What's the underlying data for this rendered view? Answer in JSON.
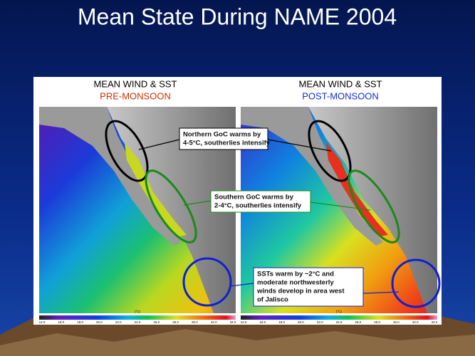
{
  "title": "Mean State During NAME 2004",
  "panels": [
    {
      "heading": "MEAN WIND & SST",
      "period": "PRE-MONSOON",
      "colorbar_unit": "(°C)",
      "colorbar_ticks": [
        "14.0",
        "16.0",
        "18.0",
        "20.0",
        "22.0",
        "24.0",
        "26.0",
        "28.0",
        "30.0",
        "32.0",
        "34.0"
      ]
    },
    {
      "heading": "MEAN WIND & SST",
      "period": "POST-MONSOON",
      "colorbar_unit": "(°C)",
      "colorbar_ticks": [
        "14.0",
        "16.0",
        "18.0",
        "20.0",
        "22.0",
        "24.0",
        "26.0",
        "28.0",
        "30.0",
        "32.0",
        "34.0"
      ]
    }
  ],
  "annotations": [
    {
      "lines": [
        "Northern GoC warms by",
        "4-5°C, southerlies intensify"
      ]
    },
    {
      "lines": [
        "Southern GoC warms by",
        "2-4°C, southerlies intensify"
      ]
    },
    {
      "lines": [
        "SSTs warm by ~2°C and",
        "moderate northwesterly",
        "winds develop in area west",
        "of Jalisco"
      ]
    }
  ]
}
